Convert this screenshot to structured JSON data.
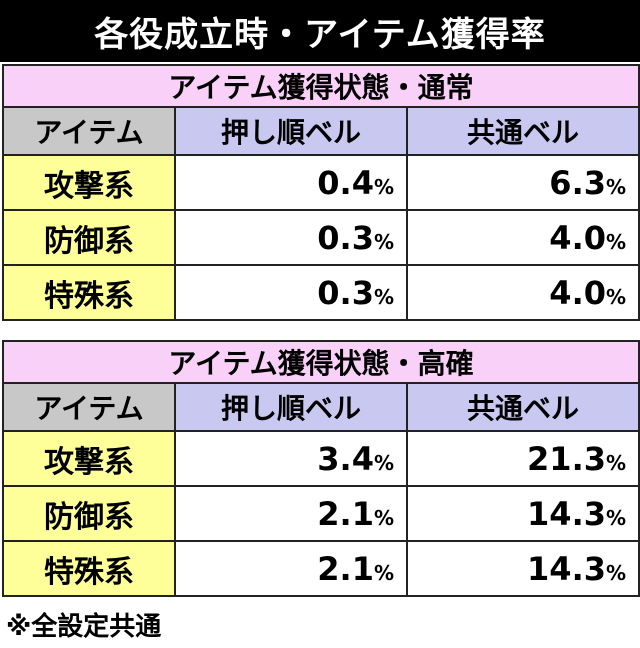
{
  "title": "各役成立時・アイテム獲得率",
  "tables": [
    {
      "section": "アイテム獲得状態・通常",
      "headers": [
        "アイテム",
        "押し順ベル",
        "共通ベル"
      ],
      "rows": [
        {
          "name": "攻撃系",
          "oshijun": "0.4",
          "kyotsu": "6.3"
        },
        {
          "name": "防御系",
          "oshijun": "0.3",
          "kyotsu": "4.0"
        },
        {
          "name": "特殊系",
          "oshijun": "0.3",
          "kyotsu": "4.0"
        }
      ]
    },
    {
      "section": "アイテム獲得状態・高確",
      "headers": [
        "アイテム",
        "押し順ベル",
        "共通ベル"
      ],
      "rows": [
        {
          "name": "攻撃系",
          "oshijun": "3.4",
          "kyotsu": "21.3"
        },
        {
          "name": "防御系",
          "oshijun": "2.1",
          "kyotsu": "14.3"
        },
        {
          "name": "特殊系",
          "oshijun": "2.1",
          "kyotsu": "14.3"
        }
      ]
    }
  ],
  "unit": "%",
  "footnote": "※全設定共通"
}
